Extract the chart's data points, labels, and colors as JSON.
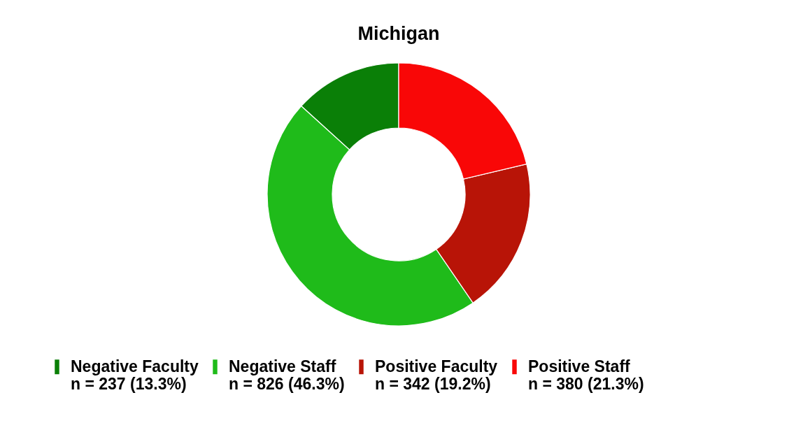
{
  "chart_data": {
    "type": "donut",
    "title": "Michigan",
    "categories": [
      "Negative Faculty",
      "Negative Staff",
      "Positive Faculty",
      "Positive Staff"
    ],
    "values": [
      237,
      826,
      342,
      380
    ],
    "value_labels": [
      "n = 237 (13.3%)",
      "n = 826 (46.3%)",
      "n = 342 (19.2%)",
      "n = 380 (21.3%)"
    ],
    "colors": [
      "#0a7f07",
      "#1fbb1a",
      "#b81407",
      "#f90707"
    ],
    "legend": "bottom"
  }
}
